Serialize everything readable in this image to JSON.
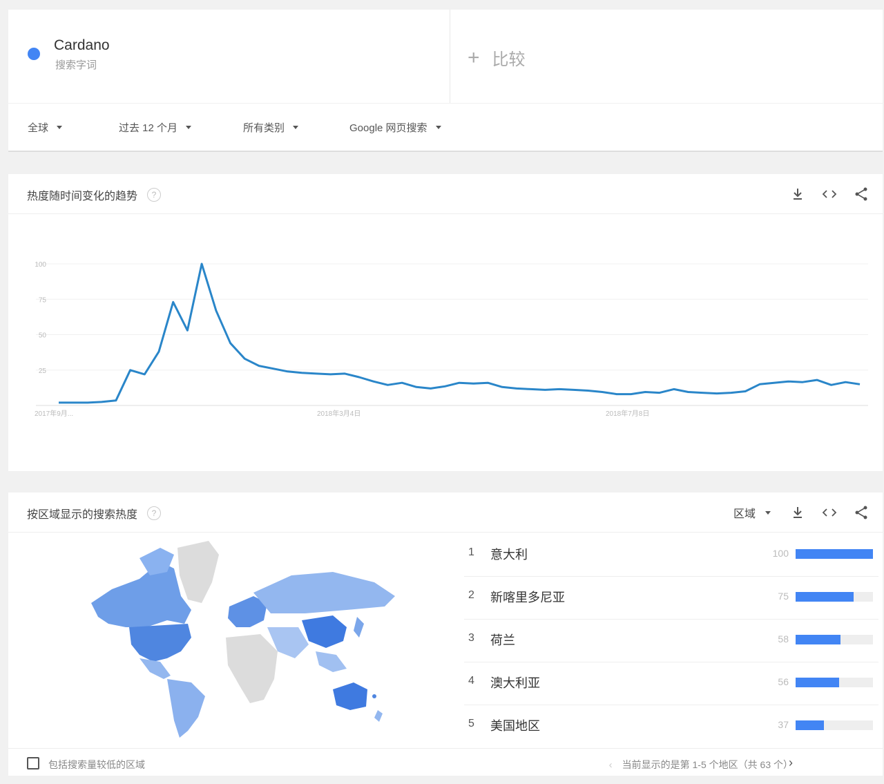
{
  "term": {
    "name": "Cardano",
    "type": "搜索字词",
    "color": "#4285f4"
  },
  "compare": {
    "plus": "+",
    "label": "比较"
  },
  "filters": [
    {
      "label": "全球"
    },
    {
      "label": "过去 12 个月"
    },
    {
      "label": "所有类别"
    },
    {
      "label": "Google 网页搜索"
    }
  ],
  "interest": {
    "title": "热度随时间变化的趋势",
    "help": "?",
    "tools": [
      "download-icon",
      "embed-icon",
      "share-icon"
    ]
  },
  "chart_data": {
    "type": "line",
    "series": [
      {
        "values": [
          2,
          2,
          2,
          2.5,
          3.5,
          25,
          22,
          38,
          73,
          53,
          100,
          67,
          44,
          33,
          28,
          26,
          24,
          23,
          22.5,
          22,
          22.5,
          20,
          17,
          14.5,
          16,
          13,
          12,
          13.5,
          16,
          15.5,
          16,
          13,
          12,
          11.5,
          11,
          11.5,
          11,
          10.5,
          9.5,
          8,
          8,
          9.5,
          9,
          11.5,
          9.5,
          9,
          8.5,
          9,
          10,
          15,
          16,
          17,
          16.5,
          18,
          14.5,
          16.5,
          15
        ]
      }
    ],
    "x_tick_labels": [
      "2017年9月...",
      "2018年3月4日",
      "2018年7月8日"
    ],
    "y_tick_labels": [
      "100",
      "75",
      "50",
      "25"
    ],
    "ylim": [
      0,
      100
    ],
    "color": "#4285f4",
    "grid": true
  },
  "region": {
    "title": "按区域显示的搜索热度",
    "help": "?",
    "select_label": "区域",
    "rows": [
      {
        "rank": "1",
        "name": "意大利",
        "value": 100
      },
      {
        "rank": "2",
        "name": "新喀里多尼亚",
        "value": 75
      },
      {
        "rank": "3",
        "name": "荷兰",
        "value": 58
      },
      {
        "rank": "4",
        "name": "澳大利亚",
        "value": 56
      },
      {
        "rank": "5",
        "name": "美国地区",
        "value": 37
      }
    ],
    "checkbox_label": "包括搜索量较低的区域",
    "pager_text": "当前显示的是第 1-5 个地区（共 63 个）",
    "pager_prev": "‹",
    "pager_next": "›"
  }
}
